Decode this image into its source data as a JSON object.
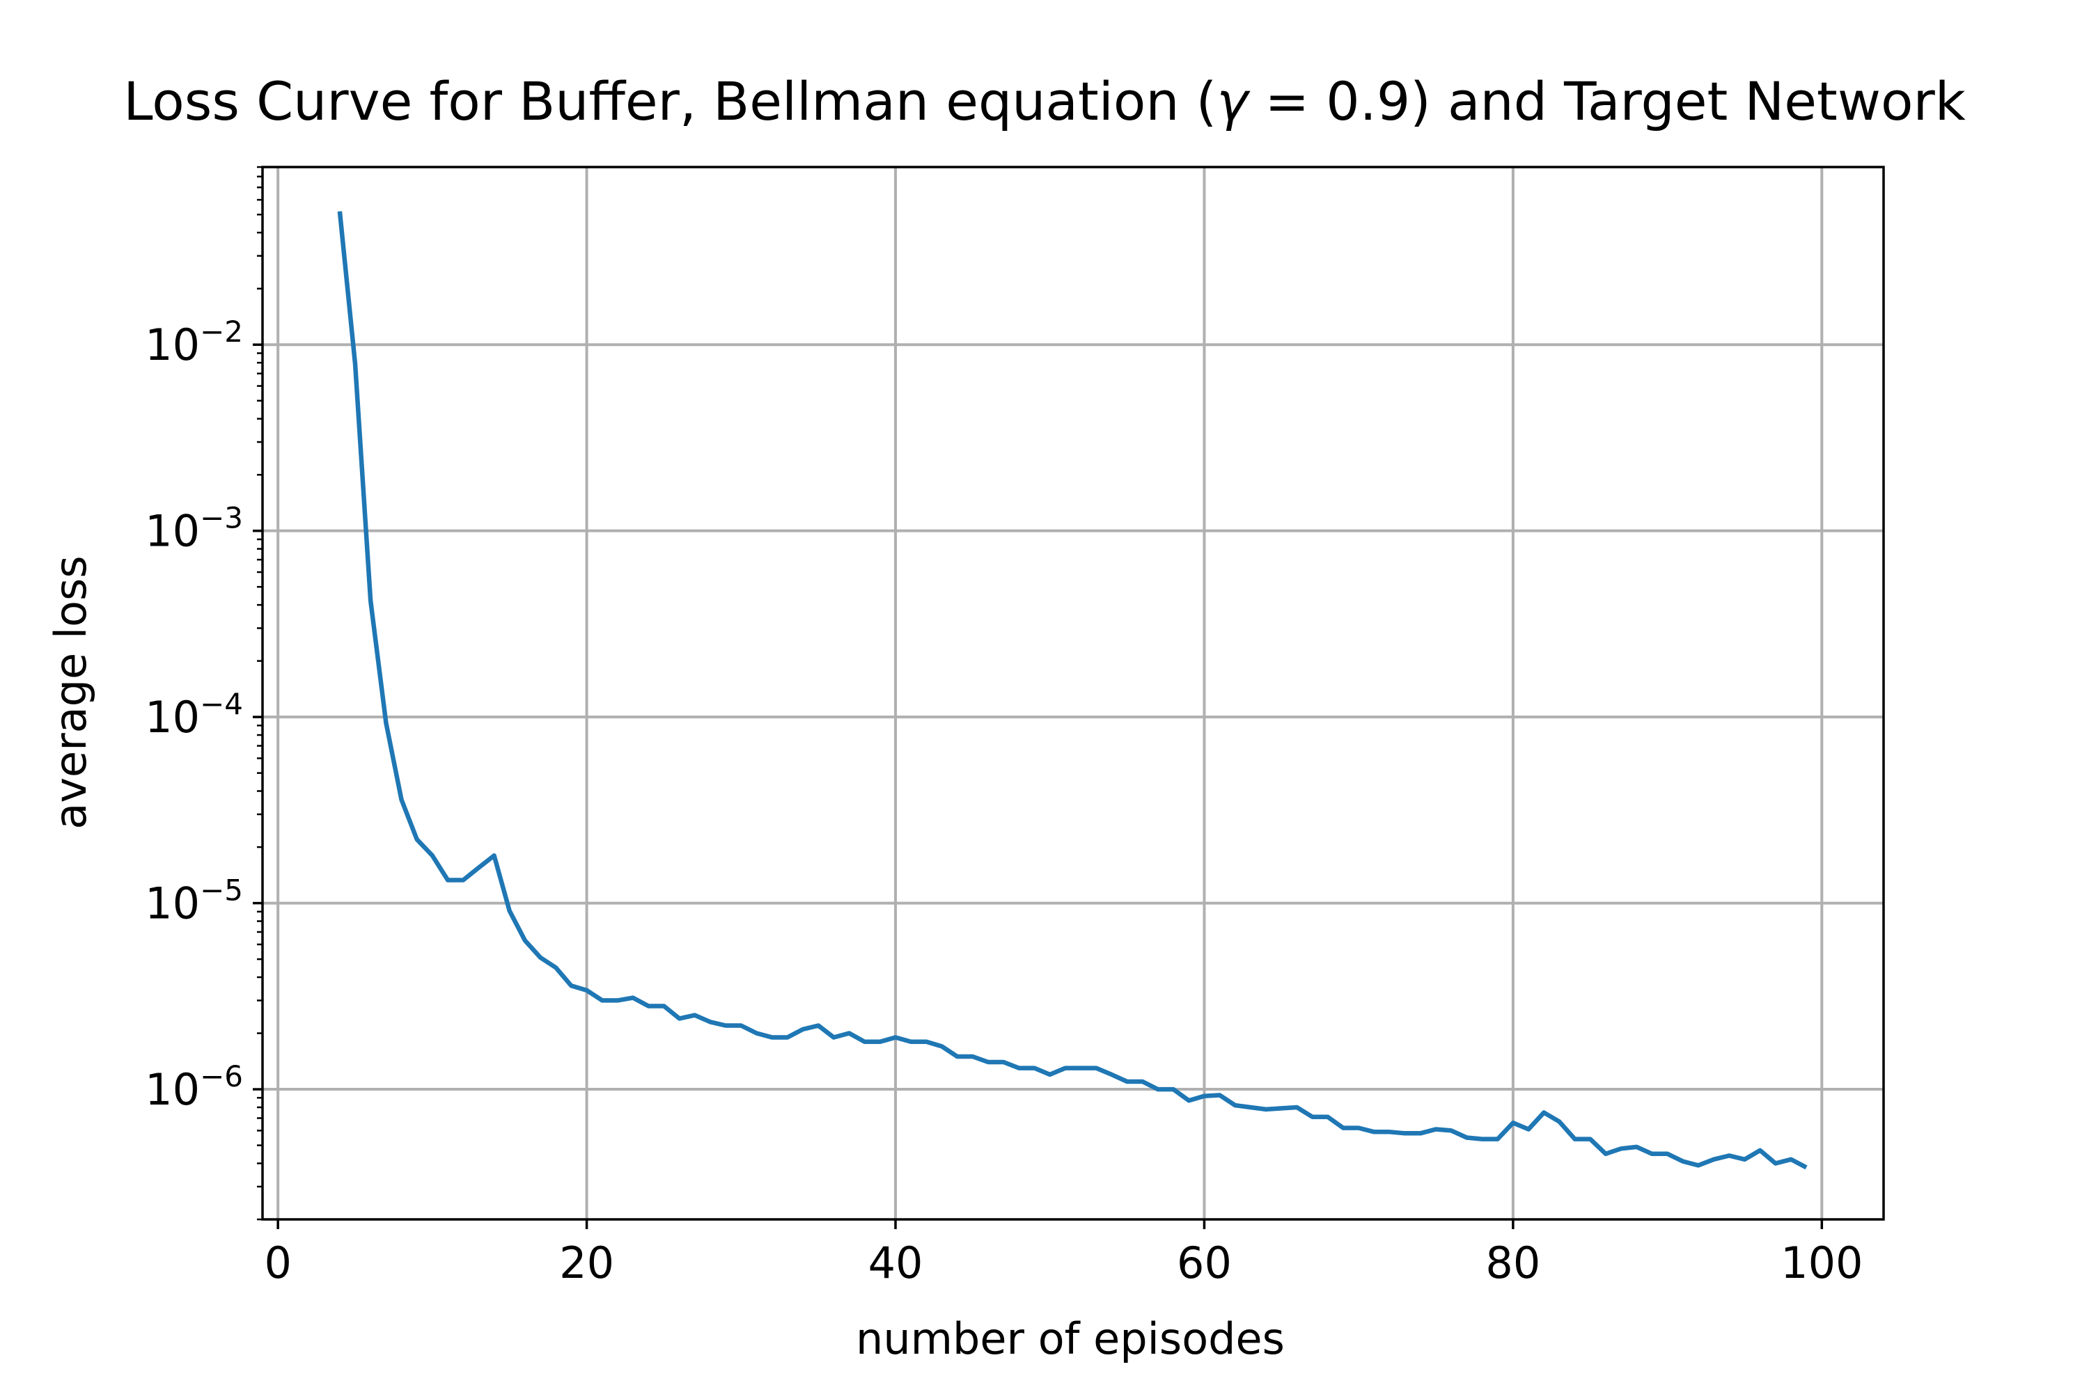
{
  "chart_data": {
    "type": "line",
    "title_main": "Loss Curve for Buffer, Bellman equation (",
    "title_symbol": "γ",
    "title_rest": " = 0.9) and Target Network",
    "xlabel": "number of episodes",
    "ylabel": "average loss",
    "xlim": [
      -1,
      104
    ],
    "ylim": [
      2e-07,
      0.09
    ],
    "yscale": "log",
    "grid": true,
    "xticks": [
      0,
      20,
      40,
      60,
      80,
      100
    ],
    "xtick_labels": [
      "0",
      "20",
      "40",
      "60",
      "80",
      "100"
    ],
    "yticks": [
      0.01,
      0.001,
      0.0001,
      1e-05,
      1e-06
    ],
    "ytick_labels": [
      {
        "base": "10",
        "exp": "−2"
      },
      {
        "base": "10",
        "exp": "−3"
      },
      {
        "base": "10",
        "exp": "−4"
      },
      {
        "base": "10",
        "exp": "−5"
      },
      {
        "base": "10",
        "exp": "−6"
      }
    ],
    "series": [
      {
        "color": "#1f77b4",
        "x": [
          4,
          5,
          6,
          7,
          8,
          9,
          10,
          11,
          12,
          13,
          14,
          15,
          16,
          17,
          18,
          19,
          20,
          21,
          22,
          23,
          24,
          25,
          26,
          27,
          28,
          29,
          30,
          31,
          32,
          33,
          34,
          35,
          36,
          37,
          38,
          39,
          40,
          41,
          42,
          43,
          44,
          45,
          46,
          47,
          48,
          49,
          50,
          51,
          52,
          53,
          54,
          55,
          56,
          57,
          58,
          59,
          60,
          61,
          62,
          63,
          64,
          65,
          66,
          67,
          68,
          69,
          70,
          71,
          72,
          73,
          74,
          75,
          76,
          77,
          78,
          79,
          80,
          81,
          82,
          83,
          84,
          85,
          86,
          87,
          88,
          89,
          90,
          91,
          92,
          93,
          94,
          95,
          96,
          97,
          98,
          99
        ],
        "y": [
          0.052,
          0.0079,
          0.00042,
          9.3e-05,
          3.6e-05,
          2.2e-05,
          1.8e-05,
          1.33e-05,
          1.33e-05,
          1.55e-05,
          1.8e-05,
          9.1e-06,
          6.3e-06,
          5.1e-06,
          4.5e-06,
          3.6e-06,
          3.4e-06,
          3e-06,
          3e-06,
          3.1e-06,
          2.8e-06,
          2.8e-06,
          2.4e-06,
          2.5e-06,
          2.3e-06,
          2.2e-06,
          2.2e-06,
          2e-06,
          1.9e-06,
          1.9e-06,
          2.1e-06,
          2.2e-06,
          1.9e-06,
          2e-06,
          1.8e-06,
          1.8e-06,
          1.9e-06,
          1.8e-06,
          1.8e-06,
          1.7e-06,
          1.5e-06,
          1.5e-06,
          1.4e-06,
          1.4e-06,
          1.3e-06,
          1.3e-06,
          1.2e-06,
          1.3e-06,
          1.3e-06,
          1.3e-06,
          1.2e-06,
          1.1e-06,
          1.1e-06,
          1e-06,
          1e-06,
          8.7e-07,
          9.2e-07,
          9.3e-07,
          8.2e-07,
          8e-07,
          7.8e-07,
          7.9e-07,
          8e-07,
          7.1e-07,
          7.1e-07,
          6.2e-07,
          6.2e-07,
          5.9e-07,
          5.9e-07,
          5.8e-07,
          5.8e-07,
          6.1e-07,
          6e-07,
          5.5e-07,
          5.4e-07,
          5.4e-07,
          6.6e-07,
          6.1e-07,
          7.5e-07,
          6.7e-07,
          5.4e-07,
          5.4e-07,
          4.5e-07,
          4.8e-07,
          4.9e-07,
          4.5e-07,
          4.5e-07,
          4.1e-07,
          3.9e-07,
          4.2e-07,
          4.4e-07,
          4.2e-07,
          4.7e-07,
          4e-07,
          4.2e-07,
          3.8e-07
        ]
      }
    ]
  }
}
